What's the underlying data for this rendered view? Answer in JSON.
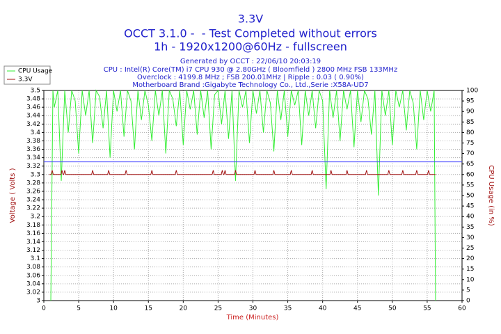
{
  "chart_data": {
    "type": "line",
    "title": "3.3V",
    "subtitles": [
      "OCCT 3.1.0 -  - Test Completed without errors",
      "1h - 1920x1200@60Hz - fullscreen"
    ],
    "info_lines": [
      "Generated by OCCT : 22/06/10 20:03:19",
      "CPU : Intel(R) Core(TM) i7 CPU 930 @ 2.80GHz ( Bloomfield ) 2800 MHz FSB 133MHz",
      "Overclock : 4199.8 MHz ; FSB 200.01MHz | Ripple : 0.03 ( 0.90%)",
      "Motherboard Brand :Gigabyte Technology Co., Ltd.,Serie :X58A-UD7"
    ],
    "xlabel": "Time (Minutes)",
    "ylabel": "Voltage ( Volts )",
    "y2label": "CPU Usage (in %)",
    "xlim": [
      0,
      60
    ],
    "xticks": [
      0,
      5,
      10,
      15,
      20,
      25,
      30,
      35,
      40,
      45,
      50,
      55,
      60
    ],
    "ylim": [
      3,
      3.5
    ],
    "yticks": [
      3,
      3.02,
      3.04,
      3.06,
      3.08,
      3.1,
      3.12,
      3.14,
      3.16,
      3.18,
      3.2,
      3.22,
      3.24,
      3.26,
      3.28,
      3.3,
      3.32,
      3.34,
      3.36,
      3.38,
      3.4,
      3.42,
      3.44,
      3.46,
      3.48,
      3.5
    ],
    "y2lim": [
      0,
      100
    ],
    "y2ticks": [
      0,
      5,
      10,
      15,
      20,
      25,
      30,
      35,
      40,
      45,
      50,
      55,
      60,
      65,
      70,
      75,
      80,
      85,
      90,
      95,
      100
    ],
    "grid": true,
    "legend": "top-left",
    "reference_line": {
      "value": 3.33,
      "color": "#4040ff"
    },
    "series": [
      {
        "name": "CPU Usage",
        "color": "#33ee33",
        "axis": "y2",
        "x": [
          1.0,
          1.3,
          1.5,
          2,
          2.5,
          3,
          3.5,
          4,
          4.5,
          5,
          5.5,
          6,
          6.5,
          7,
          7.5,
          8,
          8.5,
          9,
          9.5,
          10,
          10.5,
          11,
          11.5,
          12,
          12.5,
          13,
          13.5,
          14,
          14.5,
          15,
          15.5,
          16,
          16.5,
          17,
          17.5,
          18,
          18.5,
          19,
          19.5,
          20,
          20.5,
          21,
          21.5,
          22,
          22.5,
          23,
          23.5,
          24,
          24.5,
          25,
          25.5,
          26,
          26.5,
          27,
          27.5,
          28,
          28.5,
          29,
          29.5,
          30,
          30.5,
          31,
          31.5,
          32,
          32.5,
          33,
          33.5,
          34,
          34.5,
          35,
          35.5,
          36,
          36.5,
          37,
          37.5,
          38,
          38.5,
          39,
          39.5,
          40,
          40.5,
          41,
          41.5,
          42,
          42.5,
          43,
          43.5,
          44,
          44.5,
          45,
          45.5,
          46,
          46.5,
          47,
          47.5,
          48,
          48.5,
          49,
          49.5,
          50,
          50.5,
          51,
          51.5,
          52,
          52.5,
          53,
          53.5,
          54,
          54.5,
          55,
          55.5,
          56.0,
          56.2
        ],
        "values": [
          0,
          100,
          92,
          100,
          57,
          100,
          80,
          100,
          95,
          70,
          100,
          88,
          100,
          75,
          100,
          97,
          82,
          100,
          68,
          100,
          90,
          100,
          78,
          100,
          95,
          72,
          100,
          86,
          100,
          93,
          76,
          100,
          88,
          100,
          70,
          100,
          96,
          83,
          100,
          74,
          100,
          91,
          100,
          79,
          100,
          87,
          100,
          72,
          98,
          100,
          84,
          100,
          77,
          100,
          57,
          100,
          92,
          100,
          75,
          100,
          89,
          100,
          80,
          100,
          94,
          71,
          100,
          86,
          100,
          78,
          100,
          93,
          100,
          74,
          100,
          88,
          100,
          82,
          100,
          95,
          53,
          100,
          87,
          100,
          76,
          100,
          91,
          100,
          73,
          100,
          85,
          100,
          96,
          79,
          100,
          50,
          100,
          88,
          100,
          74,
          100,
          92,
          100,
          81,
          100,
          94,
          72,
          100,
          86,
          100,
          90,
          100,
          0
        ]
      },
      {
        "name": "3.3V",
        "color": "#a01010",
        "x": [
          0.8,
          1.05,
          1.2,
          1.35,
          2.45,
          2.6,
          2.75,
          2.85,
          3.0,
          3.15,
          6.85,
          7.0,
          7.15,
          9.15,
          9.3,
          9.45,
          11.65,
          11.8,
          11.95,
          15.35,
          15.5,
          15.65,
          18.85,
          19.0,
          19.15,
          24.15,
          24.3,
          24.45,
          25.45,
          25.6,
          25.75,
          25.85,
          26.0,
          26.15,
          27.35,
          27.5,
          27.65,
          30.15,
          30.3,
          30.45,
          32.85,
          33.0,
          33.15,
          35.35,
          35.5,
          35.65,
          38.35,
          38.5,
          38.65,
          41.05,
          41.2,
          41.35,
          43.35,
          43.5,
          43.65,
          46.15,
          46.3,
          46.45,
          49.35,
          49.5,
          49.65,
          51.35,
          51.5,
          51.65,
          53.35,
          53.5,
          53.65,
          55.05,
          55.2,
          55.35,
          56.2
        ],
        "values": [
          3.3,
          3.3,
          3.31,
          3.3,
          3.3,
          3.31,
          3.3,
          3.3,
          3.31,
          3.3,
          3.3,
          3.31,
          3.3,
          3.3,
          3.31,
          3.3,
          3.3,
          3.31,
          3.3,
          3.3,
          3.31,
          3.3,
          3.3,
          3.31,
          3.3,
          3.3,
          3.31,
          3.3,
          3.3,
          3.31,
          3.3,
          3.3,
          3.31,
          3.3,
          3.3,
          3.31,
          3.3,
          3.3,
          3.31,
          3.3,
          3.3,
          3.31,
          3.3,
          3.3,
          3.31,
          3.3,
          3.3,
          3.31,
          3.3,
          3.3,
          3.31,
          3.3,
          3.3,
          3.31,
          3.3,
          3.3,
          3.31,
          3.3,
          3.3,
          3.31,
          3.3,
          3.3,
          3.31,
          3.3,
          3.3,
          3.31,
          3.3,
          3.3,
          3.31,
          3.3,
          3.3
        ]
      }
    ]
  }
}
